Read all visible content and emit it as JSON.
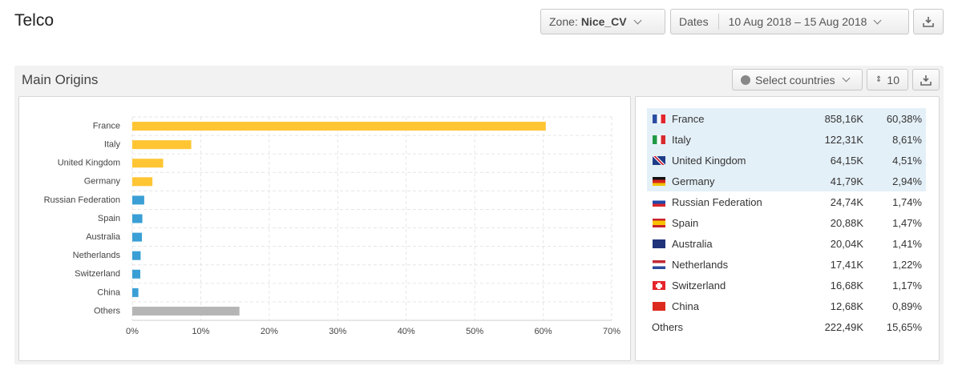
{
  "header": {
    "title": "Telco",
    "zone_label": "Zone:",
    "zone_value": "Nice_CV",
    "dates_label": "Dates",
    "date_range": "10 Aug 2018 – 15 Aug 2018"
  },
  "panel": {
    "title": "Main Origins",
    "select_countries": "Select countries",
    "limit": "10"
  },
  "chart_data": {
    "type": "bar",
    "orientation": "horizontal",
    "categories": [
      "France",
      "Italy",
      "United Kingdom",
      "Germany",
      "Russian Federation",
      "Spain",
      "Australia",
      "Netherlands",
      "Switzerland",
      "China",
      "Others"
    ],
    "values": [
      60.38,
      8.61,
      4.51,
      2.94,
      1.74,
      1.47,
      1.41,
      1.22,
      1.17,
      0.89,
      15.65
    ],
    "colors": [
      "#ffc533",
      "#ffc533",
      "#ffc533",
      "#ffc533",
      "#3a9fd5",
      "#3a9fd5",
      "#3a9fd5",
      "#3a9fd5",
      "#3a9fd5",
      "#3a9fd5",
      "#b5b5b5"
    ],
    "xlim": [
      0,
      70
    ],
    "xticks": [
      {
        "value": 0,
        "label": "0%"
      },
      {
        "value": 10,
        "label": "10%"
      },
      {
        "value": 20,
        "label": "20%"
      },
      {
        "value": 30,
        "label": "30%"
      },
      {
        "value": 40,
        "label": "40%"
      },
      {
        "value": 50,
        "label": "50%"
      },
      {
        "value": 60,
        "label": "60%"
      },
      {
        "value": 70,
        "label": "70%"
      }
    ],
    "grid": true
  },
  "table": {
    "rows": [
      [
        "France",
        "858,16K",
        "60,38%"
      ],
      [
        "Italy",
        "122,31K",
        "8,61%"
      ],
      [
        "United Kingdom",
        "64,15K",
        "4,51%"
      ],
      [
        "Germany",
        "41,79K",
        "2,94%"
      ],
      [
        "Russian Federation",
        "24,74K",
        "1,74%"
      ],
      [
        "Spain",
        "20,88K",
        "1,47%"
      ],
      [
        "Australia",
        "20,04K",
        "1,41%"
      ],
      [
        "Netherlands",
        "17,41K",
        "1,22%"
      ],
      [
        "Switzerland",
        "16,68K",
        "1,17%"
      ],
      [
        "China",
        "12,68K",
        "0,89%"
      ],
      [
        "Others",
        "222,49K",
        "15,65%"
      ]
    ]
  }
}
